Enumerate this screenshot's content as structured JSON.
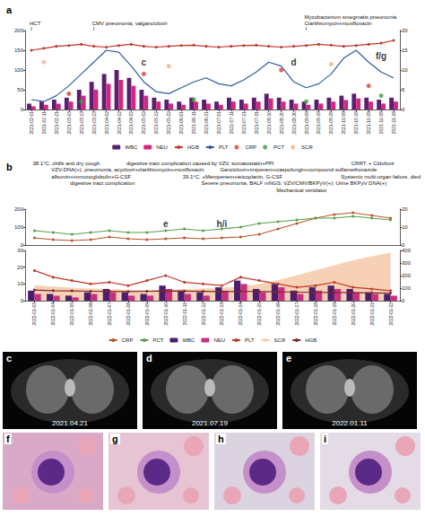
{
  "chart_data": [
    {
      "type": "combo",
      "title": "a",
      "categories": [
        "2021-02-01",
        "2021-02-11",
        "2021-02-21",
        "2021-03-03",
        "2021-03-13",
        "2021-03-23",
        "2021-04-02",
        "2021-04-12",
        "2021-04-22",
        "2021-05-02",
        "2021-05-12",
        "2021-05-22",
        "2021-06-01",
        "2021-06-11",
        "2021-06-21",
        "2021-07-01",
        "2021-07-11",
        "2021-07-21",
        "2021-07-31",
        "2021-08-10",
        "2021-08-20",
        "2021-08-30",
        "2021-09-09",
        "2021-09-19",
        "2021-09-29",
        "2021-10-09",
        "2021-10-19",
        "2021-10-29",
        "2021-11-08",
        "2021-11-18"
      ],
      "series": [
        {
          "name": "WBC",
          "type": "bar",
          "color": "#5b1f70",
          "axis": "y2",
          "values": [
            1.5,
            2,
            2.5,
            3,
            5,
            7,
            9,
            10,
            8,
            5,
            3,
            2.5,
            2,
            3,
            2.5,
            2,
            3,
            2.5,
            3,
            4,
            3,
            2.5,
            2,
            2.5,
            3,
            3.5,
            4,
            3,
            2.5,
            3
          ]
        },
        {
          "name": "NEU",
          "type": "bar",
          "color": "#d4267e",
          "axis": "y2",
          "values": [
            0.8,
            1.2,
            1.5,
            2,
            3.5,
            5,
            6.5,
            7.5,
            6,
            3.5,
            2,
            1.5,
            1.2,
            2,
            1.5,
            1.2,
            2,
            1.5,
            2,
            2.8,
            2,
            1.5,
            1.2,
            1.5,
            2,
            2.4,
            2.8,
            2,
            1.5,
            2
          ]
        },
        {
          "name": "HGB",
          "type": "line",
          "color": "#c0392b",
          "marker": "circle",
          "values": [
            150,
            155,
            160,
            162,
            165,
            160,
            158,
            162,
            165,
            160,
            158,
            160,
            162,
            163,
            160,
            158,
            160,
            162,
            163,
            160,
            158,
            160,
            162,
            165,
            163,
            160,
            162,
            165,
            168,
            175
          ]
        },
        {
          "name": "PLT",
          "type": "line",
          "color": "#2e5d9f",
          "marker": "none",
          "values": [
            25,
            20,
            35,
            60,
            90,
            120,
            150,
            145,
            110,
            70,
            45,
            40,
            55,
            70,
            80,
            65,
            60,
            75,
            95,
            120,
            110,
            70,
            55,
            65,
            90,
            130,
            150,
            120,
            95,
            80
          ]
        },
        {
          "name": "CRP",
          "type": "scatter",
          "color": "#e03c31",
          "marker": "circle",
          "values": [
            null,
            null,
            null,
            40,
            null,
            null,
            null,
            null,
            null,
            90,
            null,
            null,
            null,
            null,
            null,
            null,
            null,
            null,
            null,
            null,
            100,
            null,
            null,
            null,
            null,
            null,
            null,
            60,
            null,
            null
          ]
        },
        {
          "name": "PCT",
          "type": "scatter",
          "color": "#3e9b3e",
          "marker": "circle",
          "values": [
            null,
            null,
            null,
            null,
            20,
            null,
            null,
            null,
            null,
            null,
            null,
            null,
            null,
            25,
            null,
            null,
            null,
            null,
            null,
            null,
            null,
            null,
            20,
            null,
            null,
            null,
            null,
            null,
            35,
            null
          ]
        },
        {
          "name": "SCR",
          "type": "scatter",
          "color": "#f4b183",
          "marker": "circle",
          "values": [
            null,
            120,
            null,
            null,
            null,
            null,
            null,
            null,
            null,
            null,
            null,
            110,
            null,
            null,
            null,
            null,
            null,
            null,
            null,
            null,
            null,
            null,
            null,
            null,
            115,
            null,
            null,
            null,
            null,
            null
          ]
        }
      ],
      "ylim": [
        0,
        200
      ],
      "yticks": [
        0,
        50,
        100,
        150,
        200
      ],
      "y2lim": [
        0,
        20
      ],
      "y2ticks": [
        0,
        5,
        10,
        15,
        20
      ],
      "grid": false,
      "legend": "bottom",
      "annotations": [
        {
          "text": "HCT",
          "x": "2021-02-01"
        },
        {
          "text": "CMV pneumonia, valganciclovir",
          "x": "2021-03-23"
        },
        {
          "text": "Mycobacterium smegmatis pneumonia\nClarithromycin+moxifloxacin",
          "x": "2021-09-09"
        }
      ],
      "letters": [
        {
          "text": "c",
          "x": "2021-05-02",
          "y": 120
        },
        {
          "text": "d",
          "x": "2021-08-30",
          "y": 120
        },
        {
          "text": "f/g",
          "x": "2021-11-08",
          "y": 135
        }
      ]
    },
    {
      "type": "combo",
      "title": "b",
      "categories": [
        "2022-01-03",
        "2022-01-04",
        "2022-01-05",
        "2022-01-06",
        "2022-01-07",
        "2022-01-08",
        "2022-01-09",
        "2022-01-10",
        "2022-01-11",
        "2022-01-12",
        "2022-01-13",
        "2022-01-14",
        "2022-01-15",
        "2022-01-16",
        "2022-01-17",
        "2022-01-18",
        "2022-01-19",
        "2022-01-20",
        "2022-01-21",
        "2022-01-22"
      ],
      "series": [
        {
          "name": "CRP",
          "type": "line",
          "color": "#b5562c",
          "marker": "circle",
          "values": [
            40,
            30,
            25,
            30,
            45,
            35,
            30,
            35,
            40,
            35,
            40,
            45,
            60,
            90,
            120,
            150,
            170,
            180,
            165,
            150
          ]
        },
        {
          "name": "PCT",
          "type": "line",
          "color": "#5a9e4b",
          "marker": "circle",
          "axis": "y2",
          "values": [
            8,
            7,
            6,
            7,
            8,
            7,
            7,
            8,
            9,
            8,
            9,
            10,
            12,
            13,
            14,
            15,
            15,
            16,
            15,
            14
          ]
        }
      ],
      "ylim": [
        0,
        200
      ],
      "yticks": [
        0,
        100,
        200
      ],
      "y2lim": [
        0,
        20
      ],
      "y2ticks": [
        0,
        10,
        20
      ],
      "grid": false,
      "legend": "bottom",
      "tick_labels": "y",
      "annotations": [
        {
          "text": "38.1°C, chills and dry cough",
          "x": "2022-01-03"
        },
        {
          "text": "VZV-DNA(+), pneumonia, acyclovir+clarithromycin+moxifloxacin",
          "x": "2022-01-04"
        },
        {
          "text": "albumin+immunoglobulin+G-CSF",
          "x": "2022-01-04"
        },
        {
          "text": "digestive tract complication",
          "x": "2022-01-05"
        },
        {
          "text": "digestive tract complication caused by VZV, somatostatin+PPI",
          "x": "2022-01-08"
        },
        {
          "text": "39.1°C, +Meropenem+teicoplanin, G-CSF",
          "x": "2022-01-11"
        },
        {
          "text": "Severe pneumonia, BALF mNGS: VZV/CMV/BKPyV(+); Urine BKPyV DNA(+)",
          "x": "2022-01-12"
        },
        {
          "text": "Ganciclovir+imipenem+caspofungin+compound sulfamethoxazole",
          "x": "2022-01-13"
        },
        {
          "text": "Mechanical ventilator",
          "x": "2022-01-16"
        },
        {
          "text": "CRRT, + Cidofovir",
          "x": "2022-01-20"
        },
        {
          "text": "Systemic multi-organ failure, died",
          "x": "2022-01-22"
        }
      ],
      "letters": [
        {
          "text": "e",
          "x": "2022-01-10",
          "y": 120
        },
        {
          "text": "h/i",
          "x": "2022-01-13",
          "y": 120
        }
      ]
    },
    {
      "type": "combo",
      "categories": [
        "2022-01-03",
        "2022-01-04",
        "2022-01-05",
        "2022-01-06",
        "2022-01-07",
        "2022-01-08",
        "2022-01-09",
        "2022-01-10",
        "2022-01-11",
        "2022-01-12",
        "2022-01-13",
        "2022-01-14",
        "2022-01-15",
        "2022-01-16",
        "2022-01-17",
        "2022-01-18",
        "2022-01-19",
        "2022-01-20",
        "2022-01-21",
        "2022-01-22"
      ],
      "series": [
        {
          "name": "WBC",
          "type": "bar",
          "color": "#4b1d6e",
          "values": [
            6,
            4,
            3,
            5,
            7,
            5,
            4,
            9,
            6,
            5,
            8,
            12,
            7,
            10,
            6,
            8,
            9,
            7,
            5,
            4
          ]
        },
        {
          "name": "NEU",
          "type": "bar",
          "color": "#c8307f",
          "values": [
            4,
            3,
            2,
            4,
            5,
            3,
            3,
            7,
            4,
            3,
            6,
            10,
            5,
            8,
            4,
            6,
            7,
            5,
            4,
            3
          ]
        },
        {
          "name": "PLT",
          "type": "line",
          "color": "#c0392b",
          "marker": "circle",
          "values": [
            18,
            14,
            12,
            10,
            11,
            9,
            12,
            15,
            11,
            10,
            9,
            14,
            12,
            10,
            8,
            9,
            11,
            8,
            7,
            6
          ]
        },
        {
          "name": "SCR",
          "type": "area",
          "color": "#f6c9a8",
          "marker": "none",
          "axis": "y2",
          "values": [
            120,
            110,
            100,
            95,
            90,
            85,
            80,
            85,
            90,
            95,
            100,
            110,
            130,
            160,
            200,
            240,
            280,
            320,
            350,
            380
          ]
        },
        {
          "name": "HGB",
          "type": "line",
          "color": "#7b2d26",
          "marker": "circle",
          "axis": "y2",
          "values": [
            85,
            80,
            78,
            75,
            74,
            72,
            75,
            78,
            76,
            74,
            72,
            75,
            73,
            70,
            68,
            66,
            65,
            64,
            62,
            60
          ]
        }
      ],
      "ylim": [
        0,
        30
      ],
      "yticks": [
        0,
        10,
        20,
        30
      ],
      "y2lim": [
        0,
        400
      ],
      "y2ticks": [
        0,
        100,
        200,
        300,
        400
      ],
      "grid": false,
      "legend": "bottom"
    }
  ],
  "images": {
    "ct_scans": [
      {
        "label": "c",
        "date": "2021.04.21"
      },
      {
        "label": "d",
        "date": "2021.07.19"
      },
      {
        "label": "e",
        "date": "2022.01.11"
      }
    ],
    "smears": [
      {
        "label": "f"
      },
      {
        "label": "g"
      },
      {
        "label": "h"
      },
      {
        "label": "i"
      }
    ]
  }
}
